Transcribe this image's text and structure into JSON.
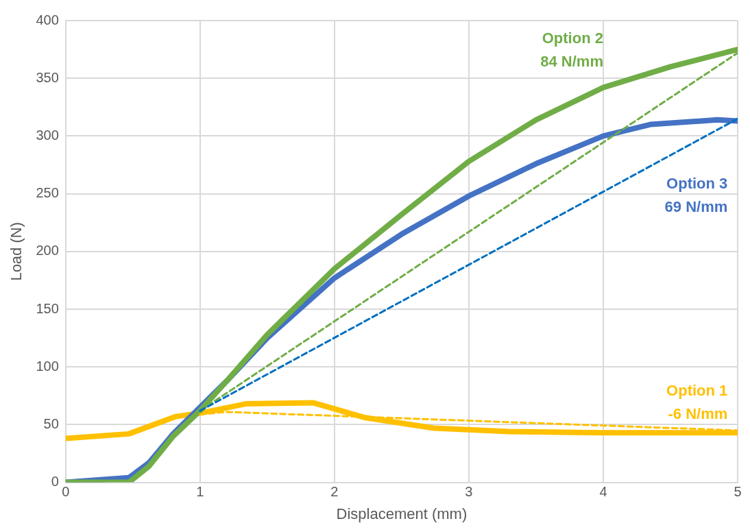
{
  "chart_data": {
    "type": "line",
    "xlabel": "Displacement (mm)",
    "ylabel": "Load (N)",
    "xlim": [
      0,
      5
    ],
    "xticks": [
      0,
      1,
      2,
      3,
      4,
      5
    ],
    "ylim": [
      0,
      400
    ],
    "yticks": [
      0,
      50,
      100,
      150,
      200,
      250,
      300,
      350,
      400
    ],
    "grid": true,
    "legend": false,
    "marker": "none",
    "series": [
      {
        "name": "Option 2",
        "color": "#70ad47",
        "line_style": "solid",
        "x": [
          0,
          0.47,
          0.62,
          0.8,
          1.0,
          1.2,
          1.5,
          2,
          2.5,
          3,
          3.5,
          4,
          4.5,
          5
        ],
        "values": [
          0,
          0,
          14,
          40,
          62,
          88,
          128,
          185,
          232,
          278,
          314,
          342,
          360,
          375
        ]
      },
      {
        "name": "Option 3",
        "color": "#4472c4",
        "line_style": "solid",
        "x": [
          0,
          0.47,
          0.62,
          0.8,
          1.0,
          1.2,
          1.5,
          2,
          2.5,
          3,
          3.5,
          4,
          4.35,
          4.85,
          5
        ],
        "values": [
          0,
          4,
          17,
          42,
          65,
          88,
          125,
          177,
          215,
          248,
          276,
          300,
          310,
          314,
          313
        ]
      },
      {
        "name": "Option 1",
        "color": "#ffc000",
        "line_style": "solid",
        "x": [
          0,
          0.47,
          0.82,
          1.0,
          1.34,
          1.84,
          2.23,
          2.74,
          3.3,
          4,
          5
        ],
        "values": [
          38,
          42,
          57,
          60,
          68,
          69,
          56,
          47,
          44,
          43,
          43
        ]
      },
      {
        "type": "line",
        "color": "#70ad47",
        "line_style": "dashed",
        "x": [
          1,
          5
        ],
        "values": [
          62,
          372
        ]
      },
      {
        "type": "line",
        "color": "#0070c0",
        "line_style": "dashed",
        "x": [
          1,
          5
        ],
        "values": [
          62,
          315
        ]
      },
      {
        "type": "line",
        "color": "#ffc000",
        "line_style": "dashed",
        "x": [
          1,
          1.2,
          5
        ],
        "values": [
          59,
          61,
          45
        ]
      }
    ],
    "annotations": [
      "84 N/mm",
      "69 N/mm",
      "-6 N/mm"
    ]
  }
}
